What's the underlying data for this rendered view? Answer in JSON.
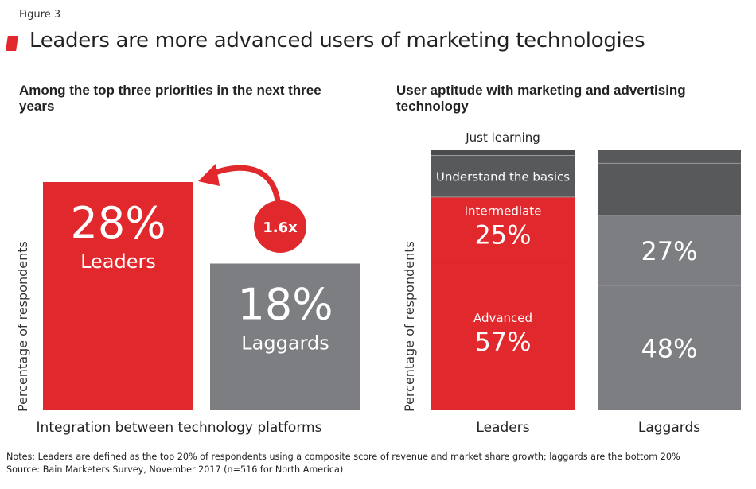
{
  "figure_label": "Figure 3",
  "title": "Leaders are more advanced users of marketing technologies",
  "colors": {
    "red": "#e1282c",
    "gray": "#7d7e82",
    "dark_gray": "#58595b",
    "darker_gray": "#4b4c4e"
  },
  "chart_data": [
    {
      "type": "bar",
      "title": "Among the top three priorities in the next three years",
      "ylabel": "Percentage of respondents",
      "xlabel": "Integration between technology platforms",
      "categories": [
        "Leaders",
        "Laggards"
      ],
      "values": [
        28,
        18
      ],
      "value_labels": [
        "28%",
        "18%"
      ],
      "annotation": "1.6x",
      "ylim": [
        0,
        28
      ]
    },
    {
      "type": "bar",
      "stacked": true,
      "title": "User aptitude with marketing and advertising technology",
      "ylabel": "Percentage of respondents",
      "categories": [
        "Leaders",
        "Laggards"
      ],
      "ylim": [
        0,
        100
      ],
      "segments": [
        "Advanced",
        "Intermediate",
        "Understand the basics",
        "Just learning"
      ],
      "series": [
        {
          "name": "Advanced",
          "values": [
            57,
            48
          ],
          "labels": [
            "57%",
            "48%"
          ]
        },
        {
          "name": "Intermediate",
          "values": [
            25,
            27
          ],
          "labels": [
            "25%",
            "27%"
          ]
        },
        {
          "name": "Understand the basics",
          "values": [
            16,
            20
          ]
        },
        {
          "name": "Just learning",
          "values": [
            2,
            5
          ]
        }
      ]
    }
  ],
  "notes": "Notes: Leaders are defined as the top 20% of respondents using a composite score of revenue and market share growth; laggards are the bottom 20%",
  "source": "Source: Bain Marketers Survey, November 2017 (n=516 for North America)"
}
